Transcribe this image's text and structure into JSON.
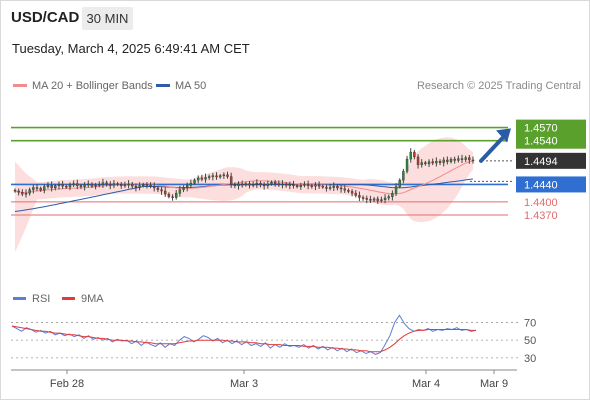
{
  "header": {
    "symbol": "USD/CAD",
    "timeframe": "30 MIN",
    "datetime": "Tuesday, March 4, 2025 6:49:41 AM CET"
  },
  "legend": {
    "items": [
      {
        "label": "MA 20 + Bollinger Bands",
        "color": "#f28b8b"
      },
      {
        "label": "MA 50",
        "color": "#2e5ca8"
      }
    ],
    "copyright": "Research © 2025 Trading Central"
  },
  "colors": {
    "resistance": "#5aa02c",
    "pivot": "#2e6fd1",
    "support": "#e06d6d",
    "current": "#333333",
    "arrow": "#2a5ba6",
    "band_fill": "#fcdede",
    "rsi": "#5b7fd6",
    "rsi_ma": "#e23b3b"
  },
  "chart_data": [
    {
      "type": "candlestick",
      "title": "USD/CAD 30 MIN",
      "ylim": [
        1.421,
        1.464
      ],
      "x_tick_labels": [
        "Feb 28",
        "Mar 3",
        "Mar 4",
        "Mar 9"
      ],
      "current_price": "1.4494",
      "levels": [
        {
          "value": 1.457,
          "label": "1.4570",
          "kind": "resistance",
          "boxed": true
        },
        {
          "value": 1.454,
          "label": "1.4540",
          "kind": "resistance",
          "boxed": true
        },
        {
          "value": 1.444,
          "label": "1.4440",
          "kind": "pivot",
          "boxed": true
        },
        {
          "value": 1.44,
          "label": "1.4400",
          "kind": "support",
          "boxed": false
        },
        {
          "value": 1.437,
          "label": "1.4370",
          "kind": "support",
          "boxed": false
        }
      ],
      "series": [
        {
          "name": "MA 20 + Bollinger Bands",
          "color": "#f28b8b"
        },
        {
          "name": "MA 50",
          "color": "#2e5ca8"
        }
      ],
      "closes": [
        1.4425,
        1.4422,
        1.4418,
        1.442,
        1.4428,
        1.4433,
        1.4431,
        1.4427,
        1.4435,
        1.4438,
        1.4432,
        1.4437,
        1.444,
        1.4436,
        1.4434,
        1.4439,
        1.4442,
        1.4437,
        1.4435,
        1.4439,
        1.4441,
        1.4436,
        1.4438,
        1.444,
        1.4444,
        1.4441,
        1.4438,
        1.4442,
        1.444,
        1.4437,
        1.4439,
        1.4441,
        1.4436,
        1.4433,
        1.4437,
        1.444,
        1.4438,
        1.4436,
        1.4432,
        1.4428,
        1.4425,
        1.4418,
        1.4412,
        1.441,
        1.442,
        1.4428,
        1.4433,
        1.4438,
        1.4443,
        1.445,
        1.4455,
        1.4452,
        1.4456,
        1.4458,
        1.446,
        1.4457,
        1.446,
        1.4462,
        1.4458,
        1.444,
        1.4437,
        1.4441,
        1.4439,
        1.4442,
        1.4438,
        1.444,
        1.4443,
        1.4439,
        1.4437,
        1.4441,
        1.4445,
        1.4442,
        1.4439,
        1.4441,
        1.4438,
        1.444,
        1.4437,
        1.4435,
        1.4438,
        1.444,
        1.4437,
        1.4436,
        1.4439,
        1.4436,
        1.4434,
        1.4431,
        1.4433,
        1.4436,
        1.4432,
        1.443,
        1.4427,
        1.4424,
        1.442,
        1.4415,
        1.441,
        1.4408,
        1.4406,
        1.4404,
        1.4407,
        1.4403,
        1.4405,
        1.4409,
        1.4412,
        1.442,
        1.4435,
        1.445,
        1.447,
        1.4498,
        1.4514,
        1.4503,
        1.4485,
        1.449,
        1.4487,
        1.4492,
        1.4489,
        1.4493,
        1.449,
        1.4496,
        1.4492,
        1.4498,
        1.4495,
        1.4499,
        1.4497,
        1.4501,
        1.4496,
        1.4494
      ]
    },
    {
      "type": "line",
      "title": "RSI",
      "ylim": [
        22,
        84
      ],
      "y_tick_labels": [
        "70",
        "50",
        "30"
      ],
      "series": [
        {
          "name": "RSI",
          "color": "#5b7fd6"
        },
        {
          "name": "9MA",
          "color": "#e23b3b"
        }
      ],
      "rsi_values": [
        66,
        63,
        60,
        64,
        62,
        59,
        61,
        58,
        60,
        56,
        58,
        55,
        57,
        54,
        56,
        52,
        55,
        51,
        53,
        50,
        52,
        48,
        51,
        49,
        50,
        46,
        49,
        44,
        48,
        45,
        43,
        47,
        42,
        46,
        44,
        50,
        54,
        52,
        48,
        51,
        55,
        53,
        49,
        52,
        47,
        50,
        46,
        49,
        45,
        48,
        44,
        46,
        43,
        47,
        41,
        45,
        42,
        46,
        43,
        44,
        42,
        45,
        41,
        44,
        40,
        43,
        39,
        42,
        38,
        41,
        37,
        40,
        36,
        38,
        35,
        37,
        34,
        36,
        45,
        55,
        70,
        78,
        69,
        63,
        60,
        62,
        61,
        63,
        60,
        62,
        61,
        63,
        62,
        64,
        61,
        62,
        60,
        61
      ],
      "ma_values": [
        66,
        65,
        64,
        63,
        62,
        61,
        60,
        60,
        59,
        58,
        58,
        57,
        56,
        56,
        55,
        54,
        54,
        53,
        52,
        52,
        51,
        50,
        50,
        50,
        49,
        49,
        48,
        48,
        47,
        47,
        46,
        46,
        46,
        46,
        46,
        47,
        48,
        49,
        49,
        50,
        50,
        50,
        50,
        50,
        50,
        49,
        49,
        48,
        48,
        48,
        47,
        47,
        46,
        46,
        45,
        45,
        45,
        44,
        44,
        44,
        44,
        43,
        43,
        43,
        42,
        42,
        42,
        41,
        41,
        40,
        40,
        39,
        39,
        38,
        38,
        37,
        37,
        37,
        39,
        42,
        46,
        51,
        55,
        58,
        60,
        61,
        61,
        62,
        62,
        62,
        62,
        62,
        62,
        62,
        62,
        62,
        61,
        61
      ]
    }
  ]
}
